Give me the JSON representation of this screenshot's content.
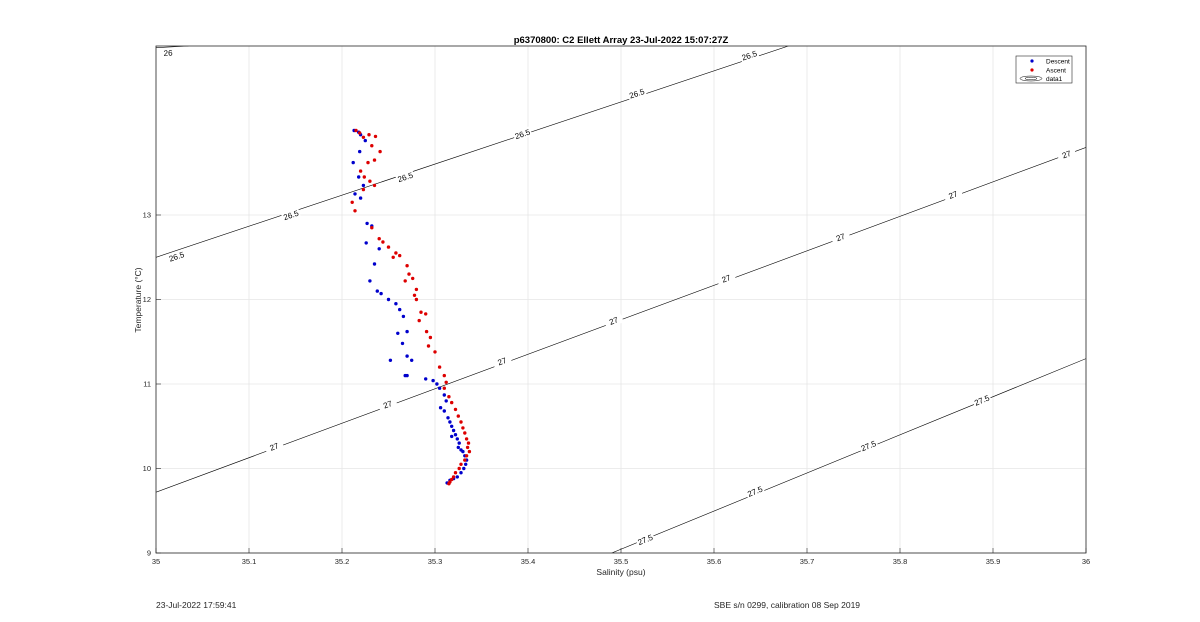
{
  "footer": {
    "timestamp": "23-Jul-2022 17:59:41",
    "calibration": "SBE s/n 0299, calibration 08 Sep 2019"
  },
  "chart_data": {
    "type": "scatter",
    "title": "p6370800: C2 Ellett Array 23-Jul-2022 15:07:27Z",
    "xlabel": "Salinity (psu)",
    "ylabel": "Temperature (°C)",
    "xlim": [
      35,
      36
    ],
    "ylim": [
      9,
      15
    ],
    "x_ticks": [
      35,
      35.1,
      35.2,
      35.3,
      35.4,
      35.5,
      35.6,
      35.7,
      35.8,
      35.9,
      36
    ],
    "x_tick_labels": [
      "35",
      "35.1",
      "35.2",
      "35.3",
      "35.4",
      "35.5",
      "35.6",
      "35.7",
      "35.8",
      "35.9",
      "36"
    ],
    "y_ticks": [
      9,
      10,
      11,
      12,
      13
    ],
    "y_tick_labels": [
      "9",
      "10",
      "11",
      "12",
      "13"
    ],
    "grid": true,
    "legend_position": "top-right",
    "legend": [
      "Descent",
      "Ascent",
      "data1"
    ],
    "colors": {
      "descent": "#0000cc",
      "ascent": "#dd0000",
      "contour": "#000000"
    },
    "series": [
      {
        "name": "Descent",
        "x": [
          35.213,
          35.218,
          35.22,
          35.225,
          35.219,
          35.212,
          35.218,
          35.223,
          35.214,
          35.22,
          35.227,
          35.232,
          35.226,
          35.24,
          35.235,
          35.23,
          35.238,
          35.242,
          35.25,
          35.258,
          35.262,
          35.266,
          35.27,
          35.26,
          35.265,
          35.27,
          35.275,
          35.27,
          35.252,
          35.268,
          35.29,
          35.298,
          35.302,
          35.305,
          35.31,
          35.312,
          35.306,
          35.31,
          35.314,
          35.316,
          35.318,
          35.32,
          35.322,
          35.318,
          35.324,
          35.326,
          35.325,
          35.328,
          35.33,
          35.332,
          35.334,
          35.333,
          35.331,
          35.328,
          35.324,
          35.32,
          35.316,
          35.313
        ],
        "y": [
          14.0,
          13.98,
          13.95,
          13.88,
          13.75,
          13.62,
          13.45,
          13.35,
          13.25,
          13.2,
          12.9,
          12.87,
          12.67,
          12.6,
          12.42,
          12.22,
          12.1,
          12.07,
          12.0,
          11.95,
          11.88,
          11.8,
          11.62,
          11.6,
          11.48,
          11.33,
          11.28,
          11.1,
          11.28,
          11.1,
          11.06,
          11.04,
          11.0,
          10.95,
          10.87,
          10.8,
          10.72,
          10.68,
          10.6,
          10.55,
          10.5,
          10.45,
          10.4,
          10.38,
          10.35,
          10.3,
          10.25,
          10.22,
          10.2,
          10.15,
          10.1,
          10.05,
          10.0,
          9.95,
          9.9,
          9.88,
          9.86,
          9.83
        ]
      },
      {
        "name": "Ascent",
        "x": [
          35.215,
          35.219,
          35.223,
          35.229,
          35.236,
          35.232,
          35.241,
          35.235,
          35.228,
          35.22,
          35.224,
          35.23,
          35.235,
          35.223,
          35.211,
          35.214,
          35.232,
          35.24,
          35.244,
          35.25,
          35.258,
          35.262,
          35.255,
          35.27,
          35.272,
          35.276,
          35.268,
          35.28,
          35.278,
          35.28,
          35.285,
          35.29,
          35.283,
          35.291,
          35.295,
          35.293,
          35.3,
          35.305,
          35.31,
          35.312,
          35.31,
          35.315,
          35.318,
          35.322,
          35.325,
          35.328,
          35.33,
          35.332,
          35.334,
          35.336,
          35.335,
          35.337,
          35.334,
          35.332,
          35.328,
          35.326,
          35.322,
          35.32,
          35.318,
          35.316,
          35.315
        ],
        "y": [
          14.0,
          13.97,
          13.92,
          13.95,
          13.93,
          13.82,
          13.75,
          13.65,
          13.62,
          13.52,
          13.45,
          13.4,
          13.35,
          13.3,
          13.15,
          13.05,
          12.85,
          12.72,
          12.68,
          12.62,
          12.55,
          12.52,
          12.5,
          12.4,
          12.3,
          12.25,
          12.22,
          12.12,
          12.05,
          12.0,
          11.85,
          11.83,
          11.75,
          11.62,
          11.55,
          11.45,
          11.38,
          11.2,
          11.1,
          11.02,
          10.95,
          10.85,
          10.78,
          10.7,
          10.62,
          10.55,
          10.48,
          10.42,
          10.35,
          10.3,
          10.25,
          10.2,
          10.15,
          10.1,
          10.05,
          10.0,
          9.95,
          9.9,
          9.87,
          9.84,
          9.82
        ]
      }
    ],
    "contours": [
      {
        "level": "26",
        "points": [
          [
            35,
            14.98
          ],
          [
            35.035,
            15.0
          ]
        ],
        "labels": [
          {
            "text": "26",
            "x": 35.013,
            "y": 14.92
          }
        ]
      },
      {
        "level": "26.5",
        "points": [
          [
            35,
            12.5
          ],
          [
            35.68,
            15.0
          ]
        ],
        "labels": [
          {
            "text": "26.5",
            "x": 35.022,
            "y": 12.51
          },
          {
            "text": "26.5",
            "x": 35.145,
            "y": 13.0
          },
          {
            "text": "26.5",
            "x": 35.268,
            "y": 13.45
          },
          {
            "text": "26.5",
            "x": 35.394,
            "y": 13.96
          },
          {
            "text": "26.5",
            "x": 35.517,
            "y": 14.44
          },
          {
            "text": "26.5",
            "x": 35.638,
            "y": 14.89
          }
        ]
      },
      {
        "level": "27",
        "points": [
          [
            35,
            9.72
          ],
          [
            36,
            13.8
          ]
        ],
        "labels": [
          {
            "text": "27",
            "x": 35.127,
            "y": 10.26
          },
          {
            "text": "27",
            "x": 35.249,
            "y": 10.76
          },
          {
            "text": "27",
            "x": 35.372,
            "y": 11.27
          },
          {
            "text": "27",
            "x": 35.492,
            "y": 11.75
          },
          {
            "text": "27",
            "x": 35.613,
            "y": 12.25
          },
          {
            "text": "27",
            "x": 35.736,
            "y": 12.74
          },
          {
            "text": "27",
            "x": 35.857,
            "y": 13.24
          },
          {
            "text": "27",
            "x": 35.979,
            "y": 13.72
          }
        ]
      },
      {
        "level": "27.5",
        "points": [
          [
            35.49,
            9.0
          ],
          [
            36,
            11.3
          ]
        ],
        "labels": [
          {
            "text": "27.5",
            "x": 35.526,
            "y": 9.16
          },
          {
            "text": "27.5",
            "x": 35.644,
            "y": 9.73
          },
          {
            "text": "27.5",
            "x": 35.766,
            "y": 10.27
          },
          {
            "text": "27.5",
            "x": 35.888,
            "y": 10.81
          }
        ]
      }
    ]
  }
}
